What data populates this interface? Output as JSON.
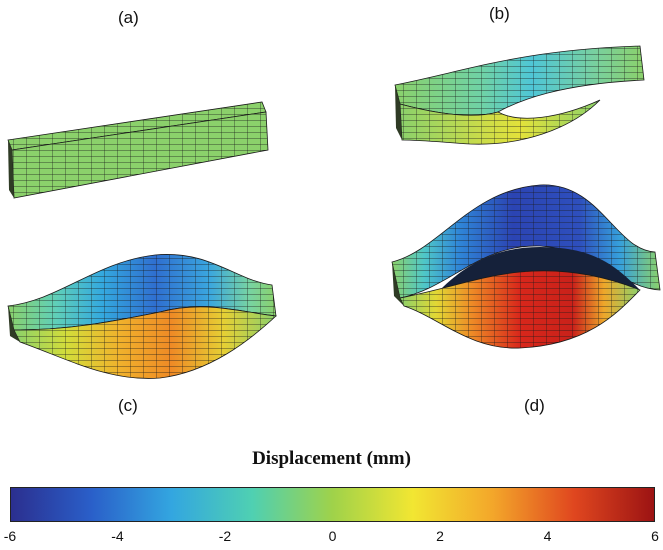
{
  "panels": [
    {
      "label": "(a)",
      "displacement_mm": 0
    },
    {
      "label": "(b)",
      "displacement_mm": 2
    },
    {
      "label": "(c)",
      "displacement_mm": 4
    },
    {
      "label": "(d)",
      "displacement_mm": 6
    }
  ],
  "colorbar": {
    "title": "Displacement (mm)",
    "min": -6,
    "max": 6,
    "ticks": [
      "-6",
      "-4",
      "-2",
      "0",
      "2",
      "4",
      "6"
    ],
    "colormap": [
      "#2b2f8f",
      "#2a5fc9",
      "#33a6e0",
      "#4fd0b2",
      "#9fd24a",
      "#f2e632",
      "#f3a62a",
      "#e0471f",
      "#9c1313"
    ]
  },
  "colors": {
    "mesh_line": "#1a1a1a",
    "neutral_face": "#8bd16b",
    "side_face": "#2f3b25"
  }
}
